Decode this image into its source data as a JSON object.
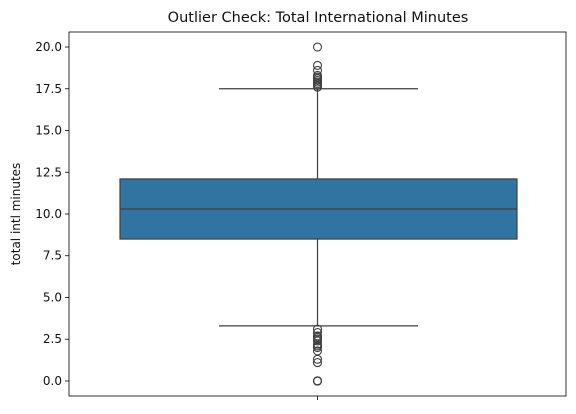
{
  "chart_data": {
    "type": "box",
    "title": "Outlier Check: Total International Minutes",
    "xlabel": "",
    "ylabel": "total intl minutes",
    "ylim": [
      -0.9,
      20.9
    ],
    "yticks": [
      0.0,
      2.5,
      5.0,
      7.5,
      10.0,
      12.5,
      15.0,
      17.5,
      20.0
    ],
    "ytick_labels": [
      "0.0",
      "2.5",
      "5.0",
      "7.5",
      "10.0",
      "12.5",
      "15.0",
      "17.5",
      "20.0"
    ],
    "grid": false,
    "box": {
      "whisker_low": 3.3,
      "q1": 8.5,
      "median": 10.3,
      "q3": 12.1,
      "whisker_high": 17.5
    },
    "outliers": [
      0.0,
      0.0,
      0.0,
      0.0,
      1.1,
      1.3,
      1.8,
      2.0,
      2.1,
      2.2,
      2.4,
      2.5,
      2.6,
      2.7,
      2.9,
      3.1,
      17.6,
      17.7,
      17.8,
      17.9,
      18.0,
      18.1,
      18.2,
      18.3,
      18.6,
      18.9,
      20.0
    ],
    "colors": {
      "box_fill": "#3274a1",
      "line": "#3f3f3f"
    }
  }
}
